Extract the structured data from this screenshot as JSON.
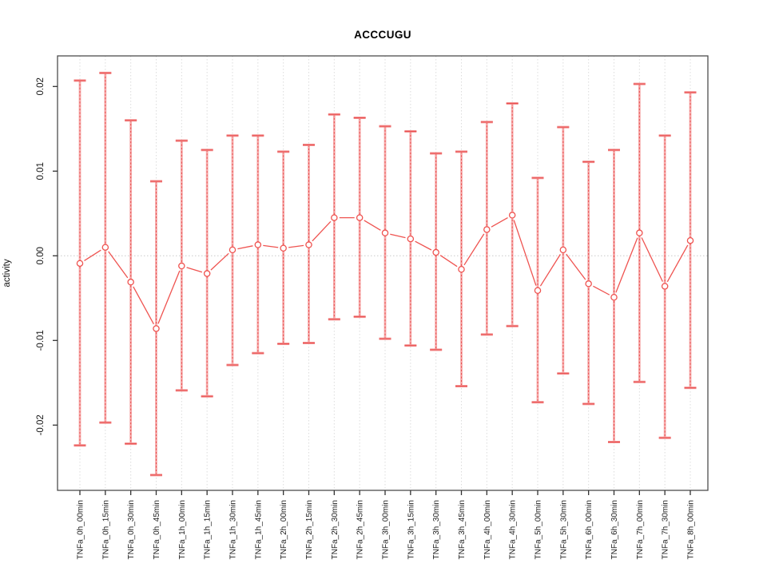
{
  "chart_data": {
    "type": "line",
    "title": "ACCCUGU",
    "xlabel": "",
    "ylabel": "activity",
    "ylim": [
      -0.0277,
      0.0236
    ],
    "yticks": [
      0.02,
      0.01,
      0.0,
      -0.01,
      -0.02
    ],
    "ytick_labels": [
      "0.02",
      "0.01",
      "0.00",
      "-0.01",
      "-0.02"
    ],
    "grid": "vertical dotted gridline at each category; horizontal dotted line at zero",
    "legend_position": "none",
    "marker": "open-circle",
    "categories": [
      "TNFa_0h_00min",
      "TNFa_0h_15min",
      "TNFa_0h_30min",
      "TNFa_0h_45min",
      "TNFa_1h_00min",
      "TNFa_1h_15min",
      "TNFa_1h_30min",
      "TNFa_1h_45min",
      "TNFa_2h_00min",
      "TNFa_2h_15min",
      "TNFa_2h_30min",
      "TNFa_2h_45min",
      "TNFa_3h_00min",
      "TNFa_3h_15min",
      "TNFa_3h_30min",
      "TNFa_3h_45min",
      "TNFa_4h_00min",
      "TNFa_4h_30min",
      "TNFa_5h_00min",
      "TNFa_5h_30min",
      "TNFa_6h_00min",
      "TNFa_6h_30min",
      "TNFa_7h_00min",
      "TNFa_7h_30min",
      "TNFa_8h_00min"
    ],
    "series": [
      {
        "name": "activity",
        "values": [
          -0.0009,
          0.001,
          -0.0031,
          -0.0086,
          -0.0012,
          -0.0021,
          0.0007,
          0.0013,
          0.0009,
          0.0013,
          0.0045,
          0.0045,
          0.0027,
          0.002,
          0.0004,
          -0.0016,
          0.0031,
          0.0048,
          -0.0041,
          0.0007,
          -0.0033,
          -0.0049,
          0.0027,
          -0.0036,
          0.0018
        ],
        "error_upper": [
          0.0207,
          0.0216,
          0.016,
          0.0088,
          0.0136,
          0.0125,
          0.0142,
          0.0142,
          0.0123,
          0.0131,
          0.0167,
          0.0163,
          0.0153,
          0.0147,
          0.0121,
          0.0123,
          0.0158,
          0.018,
          0.0092,
          0.0152,
          0.0111,
          0.0125,
          0.0203,
          0.0142,
          0.0193
        ],
        "error_lower": [
          -0.0224,
          -0.0197,
          -0.0222,
          -0.0259,
          -0.0159,
          -0.0166,
          -0.0129,
          -0.0115,
          -0.0104,
          -0.0103,
          -0.0075,
          -0.0072,
          -0.0098,
          -0.0106,
          -0.0111,
          -0.0154,
          -0.0093,
          -0.0083,
          -0.0173,
          -0.0139,
          -0.0175,
          -0.022,
          -0.0149,
          -0.0215,
          -0.0156
        ]
      }
    ],
    "colors": {
      "errorbar_band": "#f6acac",
      "errorbar_dash": "#e94f4f",
      "errorbar_cap": "#f39090",
      "series_line": "#ef5350",
      "marker_stroke": "#ef5350",
      "gridline": "#dcdcdc",
      "zero_line": "#c9c9c9",
      "axis_box": "#4d4d4d",
      "tick": "#333333",
      "tick_label": "#1a1a1a",
      "title": "#000000"
    }
  }
}
